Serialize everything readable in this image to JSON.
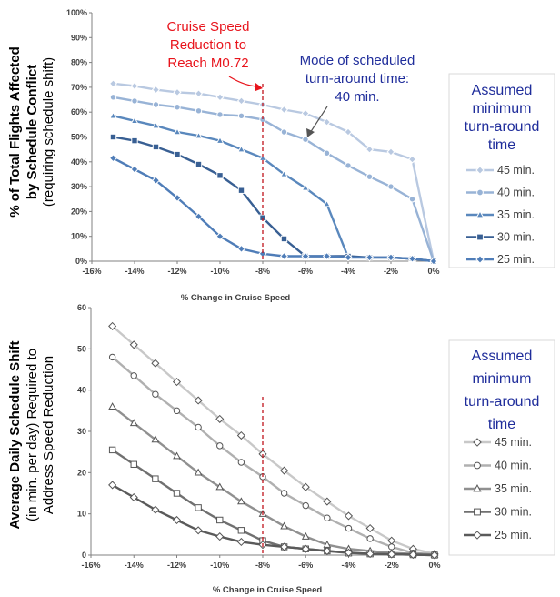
{
  "chart_data": [
    {
      "type": "line",
      "title": "",
      "xlabel": "% Change in Cruise Speed",
      "ylabel": {
        "line1": "% of Total Flights Affected",
        "line2": "by Schedule Conflict",
        "line3": "(requiring schedule shift)"
      },
      "x": [
        -15,
        -14,
        -13,
        -12,
        -11,
        -10,
        -9,
        -8,
        -7,
        -6,
        -5,
        -4,
        -3,
        -2,
        -1,
        0
      ],
      "xticks": [
        -16,
        -14,
        -12,
        -10,
        -8,
        -6,
        -4,
        -2,
        0
      ],
      "xtick_labels": [
        "-16%",
        "-14%",
        "-12%",
        "-10%",
        "-8%",
        "-6%",
        "-4%",
        "-2%",
        "0%"
      ],
      "xlim": [
        -16,
        0
      ],
      "ylim": [
        0,
        100
      ],
      "yticks": [
        0,
        10,
        20,
        30,
        40,
        50,
        60,
        70,
        80,
        90,
        100
      ],
      "ytick_labels": [
        "0%",
        "10%",
        "20%",
        "30%",
        "40%",
        "50%",
        "60%",
        "70%",
        "80%",
        "90%",
        "100%"
      ],
      "grid": false,
      "reference_line_x": -8,
      "legend": {
        "title_lines": [
          "Assumed",
          "minimum",
          "turn-around",
          "time"
        ],
        "placement": "right"
      },
      "annotations": {
        "red": [
          "Cruise Speed",
          "Reduction to",
          "Reach M0.72"
        ],
        "blue": [
          "Mode of scheduled",
          "turn-around time:",
          "40 min."
        ]
      },
      "series": [
        {
          "name": "45 min.",
          "color": "#b9c9e1",
          "marker": "diamond",
          "values": [
            71.5,
            70.5,
            69,
            68,
            67.5,
            66,
            64.5,
            63,
            61,
            59.5,
            56,
            52,
            45,
            44,
            41,
            0
          ]
        },
        {
          "name": "40 min.",
          "color": "#98b3d6",
          "marker": "circle",
          "values": [
            66,
            64.5,
            63,
            62,
            60.5,
            59,
            58.5,
            57,
            52,
            49,
            43.5,
            38.5,
            34,
            30,
            25,
            0
          ]
        },
        {
          "name": "35 min.",
          "color": "#5a88bd",
          "marker": "triangle",
          "values": [
            58.5,
            56.5,
            54.5,
            52,
            50.5,
            48.5,
            45,
            41.5,
            35,
            29.5,
            23,
            1.5,
            1.5,
            1.5,
            1,
            0
          ]
        },
        {
          "name": "30 min.",
          "color": "#385f93",
          "marker": "square",
          "values": [
            50,
            48.5,
            46,
            43,
            39,
            34.5,
            28.5,
            17.5,
            9,
            2,
            2,
            2,
            1.5,
            1.5,
            1,
            0
          ]
        },
        {
          "name": "25 min.",
          "color": "#4f7db8",
          "marker": "diamond",
          "values": [
            41.5,
            37,
            32.5,
            25.5,
            18,
            10,
            5,
            3,
            2,
            2,
            2,
            1.5,
            1.5,
            1.5,
            1,
            0
          ]
        }
      ]
    },
    {
      "type": "line",
      "title": "",
      "xlabel": "% Change in Cruise Speed",
      "ylabel": {
        "line1": "Average Daily Schedule Shift",
        "line2": "(in min. per day) Required to",
        "line3": "Address Speed Reduction"
      },
      "x": [
        -15,
        -14,
        -13,
        -12,
        -11,
        -10,
        -9,
        -8,
        -7,
        -6,
        -5,
        -4,
        -3,
        -2,
        -1,
        0
      ],
      "xticks": [
        -16,
        -14,
        -12,
        -10,
        -8,
        -6,
        -4,
        -2,
        0
      ],
      "xtick_labels": [
        "-16%",
        "-14%",
        "-12%",
        "-10%",
        "-8%",
        "-6%",
        "-4%",
        "-2%",
        "0%"
      ],
      "xlim": [
        -16,
        0
      ],
      "ylim": [
        0,
        60
      ],
      "yticks": [
        0,
        10,
        20,
        30,
        40,
        50,
        60
      ],
      "ytick_labels": [
        "0",
        "10",
        "20",
        "30",
        "40",
        "50",
        "60"
      ],
      "grid": false,
      "reference_line_x": -8,
      "legend": {
        "title_lines": [
          "Assumed",
          "minimum",
          "turn-around",
          "time"
        ],
        "placement": "right"
      },
      "series": [
        {
          "name": "45 min.",
          "color": "#c8c8c8",
          "marker": "diamond",
          "values": [
            55.5,
            51,
            46.5,
            42,
            37.5,
            33,
            29,
            24.5,
            20.5,
            16.5,
            13,
            9.5,
            6.5,
            3.5,
            1.5,
            0.3
          ]
        },
        {
          "name": "40 min.",
          "color": "#b0b0b0",
          "marker": "circle",
          "values": [
            48,
            43.5,
            39,
            35,
            31,
            26.5,
            22.5,
            19,
            15,
            12,
            9,
            6.5,
            4,
            2,
            0.5,
            0.2
          ]
        },
        {
          "name": "35 min.",
          "color": "#909090",
          "marker": "triangle",
          "values": [
            36,
            32,
            28,
            24,
            20,
            16.5,
            13,
            10,
            7,
            4.5,
            2.5,
            1.5,
            1,
            0.5,
            0.3,
            0.1
          ]
        },
        {
          "name": "30 min.",
          "color": "#707070",
          "marker": "square",
          "values": [
            25.5,
            22,
            18.5,
            15,
            11.5,
            8.5,
            6,
            3.5,
            2,
            1.5,
            1,
            0.5,
            0.3,
            0.2,
            0.1,
            0
          ]
        },
        {
          "name": "25 min.",
          "color": "#5a5a5a",
          "marker": "diamond",
          "values": [
            17,
            14,
            11,
            8.5,
            6,
            4.5,
            3.2,
            2.5,
            2,
            1.5,
            1,
            0.6,
            0.3,
            0.2,
            0.1,
            0
          ]
        }
      ]
    }
  ]
}
